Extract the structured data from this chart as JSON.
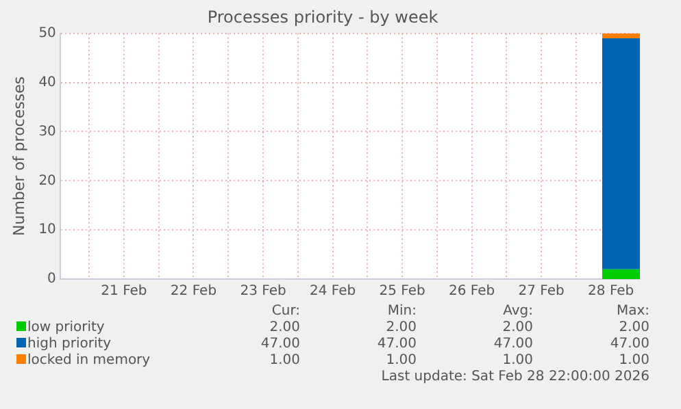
{
  "chart_data": {
    "type": "area",
    "stacked": true,
    "title": "Processes priority - by week",
    "ylabel": "Number of processes",
    "xlim": [
      "2026-02-20T14:00",
      "2026-02-28T22:00"
    ],
    "xticks": [
      {
        "value": "2026-02-21T00:00",
        "label": null
      },
      {
        "value": "2026-02-21T12:00",
        "label": "21 Feb"
      },
      {
        "value": "2026-02-22T00:00",
        "label": null
      },
      {
        "value": "2026-02-22T12:00",
        "label": "22 Feb"
      },
      {
        "value": "2026-02-23T00:00",
        "label": null
      },
      {
        "value": "2026-02-23T12:00",
        "label": "23 Feb"
      },
      {
        "value": "2026-02-24T00:00",
        "label": null
      },
      {
        "value": "2026-02-24T12:00",
        "label": "24 Feb"
      },
      {
        "value": "2026-02-25T00:00",
        "label": null
      },
      {
        "value": "2026-02-25T12:00",
        "label": "25 Feb"
      },
      {
        "value": "2026-02-26T00:00",
        "label": null
      },
      {
        "value": "2026-02-26T12:00",
        "label": "26 Feb"
      },
      {
        "value": "2026-02-27T00:00",
        "label": null
      },
      {
        "value": "2026-02-27T12:00",
        "label": "27 Feb"
      },
      {
        "value": "2026-02-28T00:00",
        "label": null
      },
      {
        "value": "2026-02-28T12:00",
        "label": "28 Feb"
      }
    ],
    "ylim": [
      0,
      50
    ],
    "yticks": [
      0,
      10,
      20,
      30,
      40,
      50
    ],
    "grid": true,
    "legend": "bottom",
    "x": [
      "2026-02-28T09:00",
      "2026-02-28T22:00"
    ],
    "series": [
      {
        "name": "low priority",
        "color": "#00cc00",
        "values": [
          2,
          2
        ]
      },
      {
        "name": "high priority",
        "color": "#0066b3",
        "values": [
          47,
          47
        ]
      },
      {
        "name": "locked in memory",
        "color": "#ff8000",
        "values": [
          1,
          1
        ]
      }
    ],
    "annotations": [
      "Cur:",
      "Min:",
      "Avg:",
      "Max:",
      "2.00",
      "2.00",
      "2.00",
      "2.00",
      "47.00",
      "47.00",
      "47.00",
      "47.00",
      "1.00",
      "1.00",
      "1.00",
      "1.00",
      "Last update: Sat Feb 28 22:00:00 2026"
    ]
  }
}
